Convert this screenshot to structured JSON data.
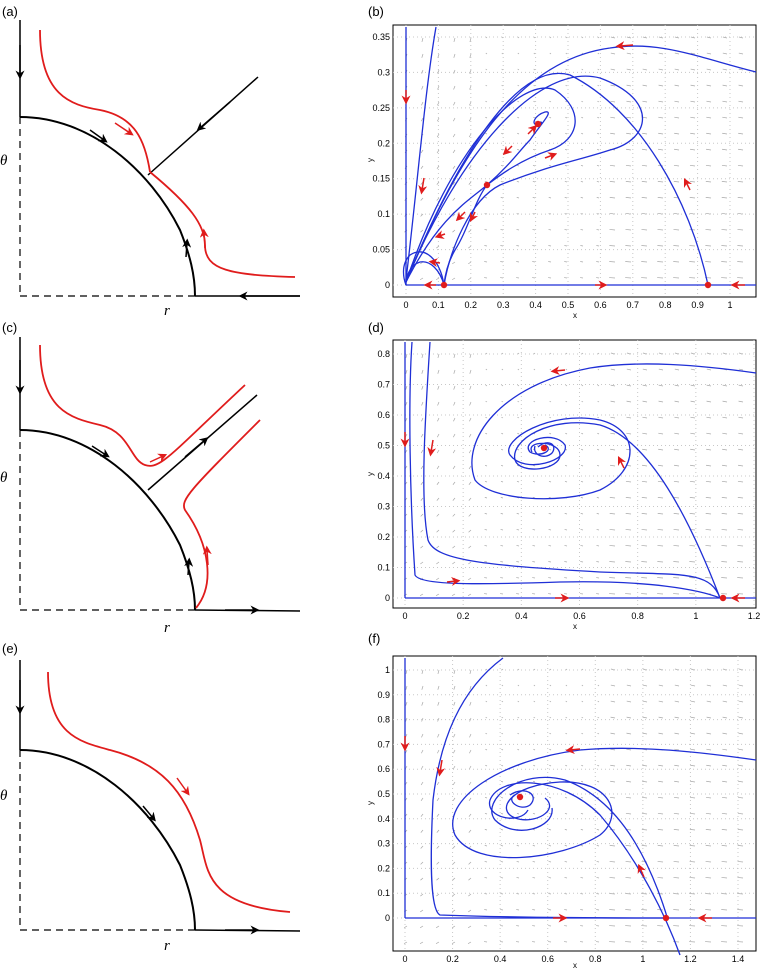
{
  "panels": [
    {
      "id": "a",
      "label": "(a)",
      "r_label": "r",
      "theta_label": "θ"
    },
    {
      "id": "b",
      "label": "(b)",
      "xlabel": "x",
      "ylabel": "y",
      "xticks": [
        "0",
        "0.1",
        "0.2",
        "0.3",
        "0.4",
        "0.5",
        "0.6",
        "0.7",
        "0.8",
        "0.9",
        "1"
      ],
      "yticks": [
        "0",
        "0.05",
        "0.1",
        "0.15",
        "0.2",
        "0.25",
        "0.3",
        "0.35"
      ]
    },
    {
      "id": "c",
      "label": "(c)",
      "r_label": "r",
      "theta_label": "θ"
    },
    {
      "id": "d",
      "label": "(d)",
      "xlabel": "x",
      "ylabel": "y",
      "xticks": [
        "0",
        "0.2",
        "0.4",
        "0.6",
        "0.8",
        "1",
        "1.2"
      ],
      "yticks": [
        "0",
        "0.1",
        "0.2",
        "0.3",
        "0.4",
        "0.5",
        "0.6",
        "0.7",
        "0.8"
      ]
    },
    {
      "id": "e",
      "label": "(e)",
      "r_label": "r",
      "theta_label": "θ"
    },
    {
      "id": "f",
      "label": "(f)",
      "xlabel": "x",
      "ylabel": "y",
      "xticks": [
        "0",
        "0.2",
        "0.4",
        "0.6",
        "0.8",
        "1",
        "1.2",
        "1.4"
      ],
      "yticks": [
        "0",
        "0.1",
        "0.2",
        "0.3",
        "0.4",
        "0.5",
        "0.6",
        "0.7",
        "0.8",
        "0.9",
        "1"
      ]
    }
  ],
  "colors": {
    "trajectory": "#1f2fd6",
    "highlight": "#e01c1c",
    "boundary": "#000000",
    "quiver": "#9a9a9a"
  }
}
